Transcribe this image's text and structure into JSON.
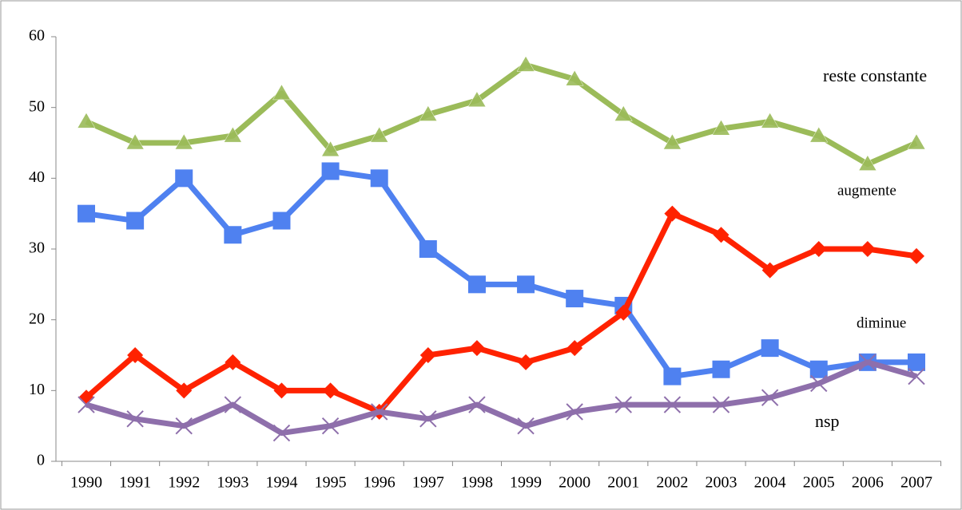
{
  "chart_data": {
    "type": "line",
    "categories": [
      "1990",
      "1991",
      "1992",
      "1993",
      "1994",
      "1995",
      "1996",
      "1997",
      "1998",
      "1999",
      "2000",
      "2001",
      "2002",
      "2003",
      "2004",
      "2005",
      "2006",
      "2007"
    ],
    "ylim": [
      0,
      60
    ],
    "yticks": [
      0,
      10,
      20,
      30,
      40,
      50,
      60
    ],
    "series": [
      {
        "name": "reste constante",
        "color": "#9bbb59",
        "marker": "triangle",
        "values": [
          48,
          45,
          45,
          46,
          52,
          44,
          46,
          49,
          51,
          56,
          54,
          49,
          45,
          47,
          48,
          46,
          42,
          45
        ]
      },
      {
        "name": "augmente",
        "color": "#4f81f0",
        "marker": "square",
        "values": [
          35,
          34,
          40,
          32,
          34,
          41,
          40,
          30,
          25,
          25,
          23,
          22,
          12,
          13,
          16,
          13,
          14,
          14
        ]
      },
      {
        "name": "diminue",
        "color": "#ff2200",
        "marker": "diamond",
        "values": [
          9,
          15,
          10,
          14,
          10,
          10,
          7,
          15,
          16,
          14,
          16,
          21,
          35,
          32,
          27,
          30,
          30,
          29
        ]
      },
      {
        "name": "nsp",
        "color": "#8e6fab",
        "marker": "x",
        "values": [
          8,
          6,
          5,
          8,
          4,
          5,
          7,
          6,
          8,
          5,
          7,
          8,
          8,
          8,
          9,
          11,
          14,
          12
        ]
      }
    ]
  }
}
